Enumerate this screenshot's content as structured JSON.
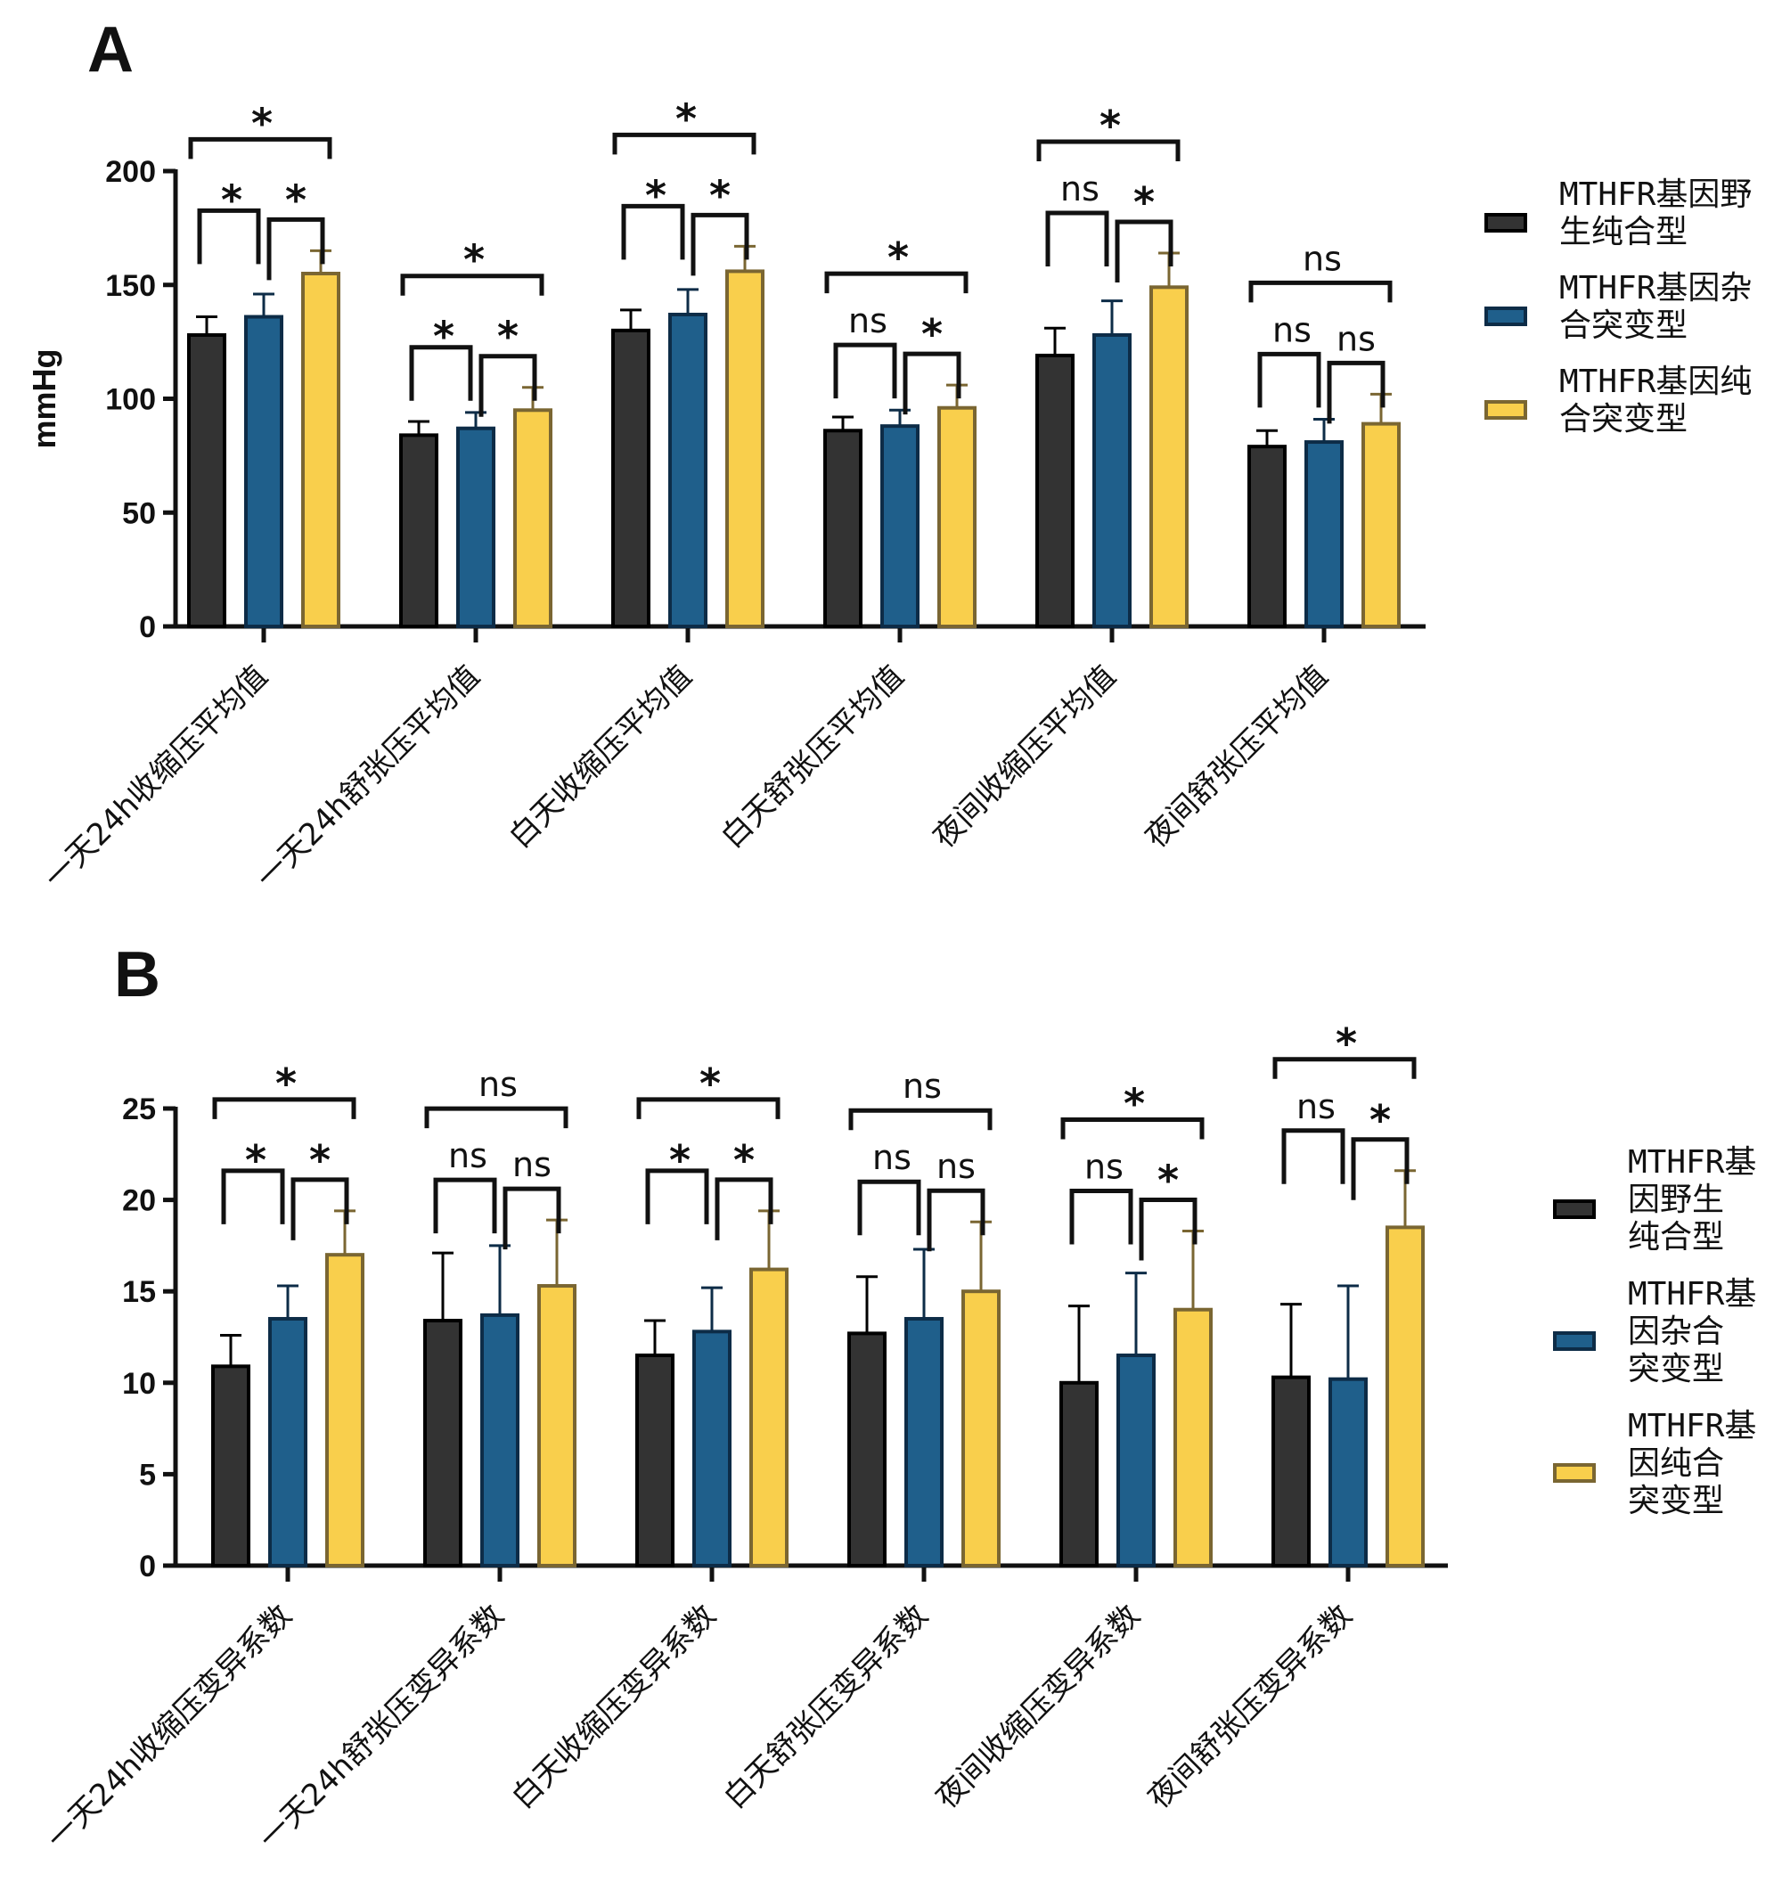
{
  "legend_colors": {
    "wild": {
      "fill": "#333333",
      "edge": "#000000"
    },
    "het": {
      "fill": "#1f5f8b",
      "edge": "#0d2c47"
    },
    "hom": {
      "fill": "#f9cf4c",
      "edge": "#7a6632"
    }
  },
  "chart_data": [
    {
      "panel": "A",
      "type": "bar",
      "ylabel": "mmHg",
      "ylim": [
        0,
        200
      ],
      "yticks": [
        "0",
        "50",
        "100",
        "150",
        "200"
      ],
      "categories": [
        "一天24h收缩压平均值",
        "一天24h舒张压平均值",
        "白天收缩压平均值",
        "白天舒张压平均值",
        "夜间收缩压平均值",
        "夜间舒张压平均值"
      ],
      "legend": [
        {
          "lines": [
            "MTHFR基因野",
            "生纯合型"
          ],
          "key": "wild"
        },
        {
          "lines": [
            "MTHFR基因杂",
            "合突变型"
          ],
          "key": "het"
        },
        {
          "lines": [
            "MTHFR基因纯",
            "合突变型"
          ],
          "key": "hom"
        }
      ],
      "series": [
        {
          "name": "MTHFR基因野生纯合型",
          "key": "wild",
          "values": [
            128,
            84,
            130,
            86,
            119,
            79
          ],
          "errors": [
            8,
            6,
            9,
            6,
            12,
            7
          ]
        },
        {
          "name": "MTHFR基因杂合突变型",
          "key": "het",
          "values": [
            136,
            87,
            137,
            88,
            128,
            81
          ],
          "errors": [
            10,
            7,
            11,
            7,
            15,
            10
          ]
        },
        {
          "name": "MTHFR基因纯合突变型",
          "key": "hom",
          "values": [
            155,
            95,
            156,
            96,
            149,
            89
          ],
          "errors": [
            10,
            10,
            11,
            10,
            15,
            13
          ]
        }
      ],
      "significance": [
        {
          "pair1": "*",
          "pair2": "*",
          "overall": "*"
        },
        {
          "pair1": "*",
          "pair2": "*",
          "overall": "*"
        },
        {
          "pair1": "*",
          "pair2": "*",
          "overall": "*"
        },
        {
          "pair1": "ns",
          "pair2": "*",
          "overall": "*"
        },
        {
          "pair1": "ns",
          "pair2": "*",
          "overall": "*"
        },
        {
          "pair1": "ns",
          "pair2": "ns",
          "overall": "ns"
        }
      ]
    },
    {
      "panel": "B",
      "type": "bar",
      "ylabel": "",
      "ylim": [
        0,
        25
      ],
      "yticks": [
        "0",
        "5",
        "10",
        "15",
        "20",
        "25"
      ],
      "categories": [
        "一天24h收缩压变异系数",
        "一天24h舒张压变异系数",
        "白天收缩压变异系数",
        "白天舒张压变异系数",
        "夜间收缩压变异系数",
        "夜间舒张压变异系数"
      ],
      "legend": [
        {
          "lines": [
            "MTHFR基",
            "因野生",
            "纯合型"
          ],
          "key": "wild"
        },
        {
          "lines": [
            "MTHFR基",
            "因杂合",
            "突变型"
          ],
          "key": "het"
        },
        {
          "lines": [
            "MTHFR基",
            "因纯合",
            "突变型"
          ],
          "key": "hom"
        }
      ],
      "series": [
        {
          "name": "MTHFR基因野生纯合型",
          "key": "wild",
          "values": [
            10.9,
            13.4,
            11.5,
            12.7,
            10.0,
            10.3
          ],
          "errors": [
            1.7,
            3.7,
            1.9,
            3.1,
            4.2,
            4.0
          ]
        },
        {
          "name": "MTHFR基因杂合突变型",
          "key": "het",
          "values": [
            13.5,
            13.7,
            12.8,
            13.5,
            11.5,
            10.2
          ],
          "errors": [
            1.8,
            3.8,
            2.4,
            3.8,
            4.5,
            5.1
          ]
        },
        {
          "name": "MTHFR基因纯合突变型",
          "key": "hom",
          "values": [
            17.0,
            15.3,
            16.2,
            15.0,
            14.0,
            18.5
          ],
          "errors": [
            2.4,
            3.6,
            3.2,
            3.8,
            4.3,
            3.1
          ]
        }
      ],
      "significance": [
        {
          "pair1": "*",
          "pair2": "*",
          "overall": "*"
        },
        {
          "pair1": "ns",
          "pair2": "ns",
          "overall": "ns"
        },
        {
          "pair1": "*",
          "pair2": "*",
          "overall": "*"
        },
        {
          "pair1": "ns",
          "pair2": "ns",
          "overall": "ns"
        },
        {
          "pair1": "ns",
          "pair2": "*",
          "overall": "*"
        },
        {
          "pair1": "ns",
          "pair2": "*",
          "overall": "*"
        }
      ]
    }
  ],
  "panel_labels": {
    "a": "A",
    "b": "B"
  }
}
